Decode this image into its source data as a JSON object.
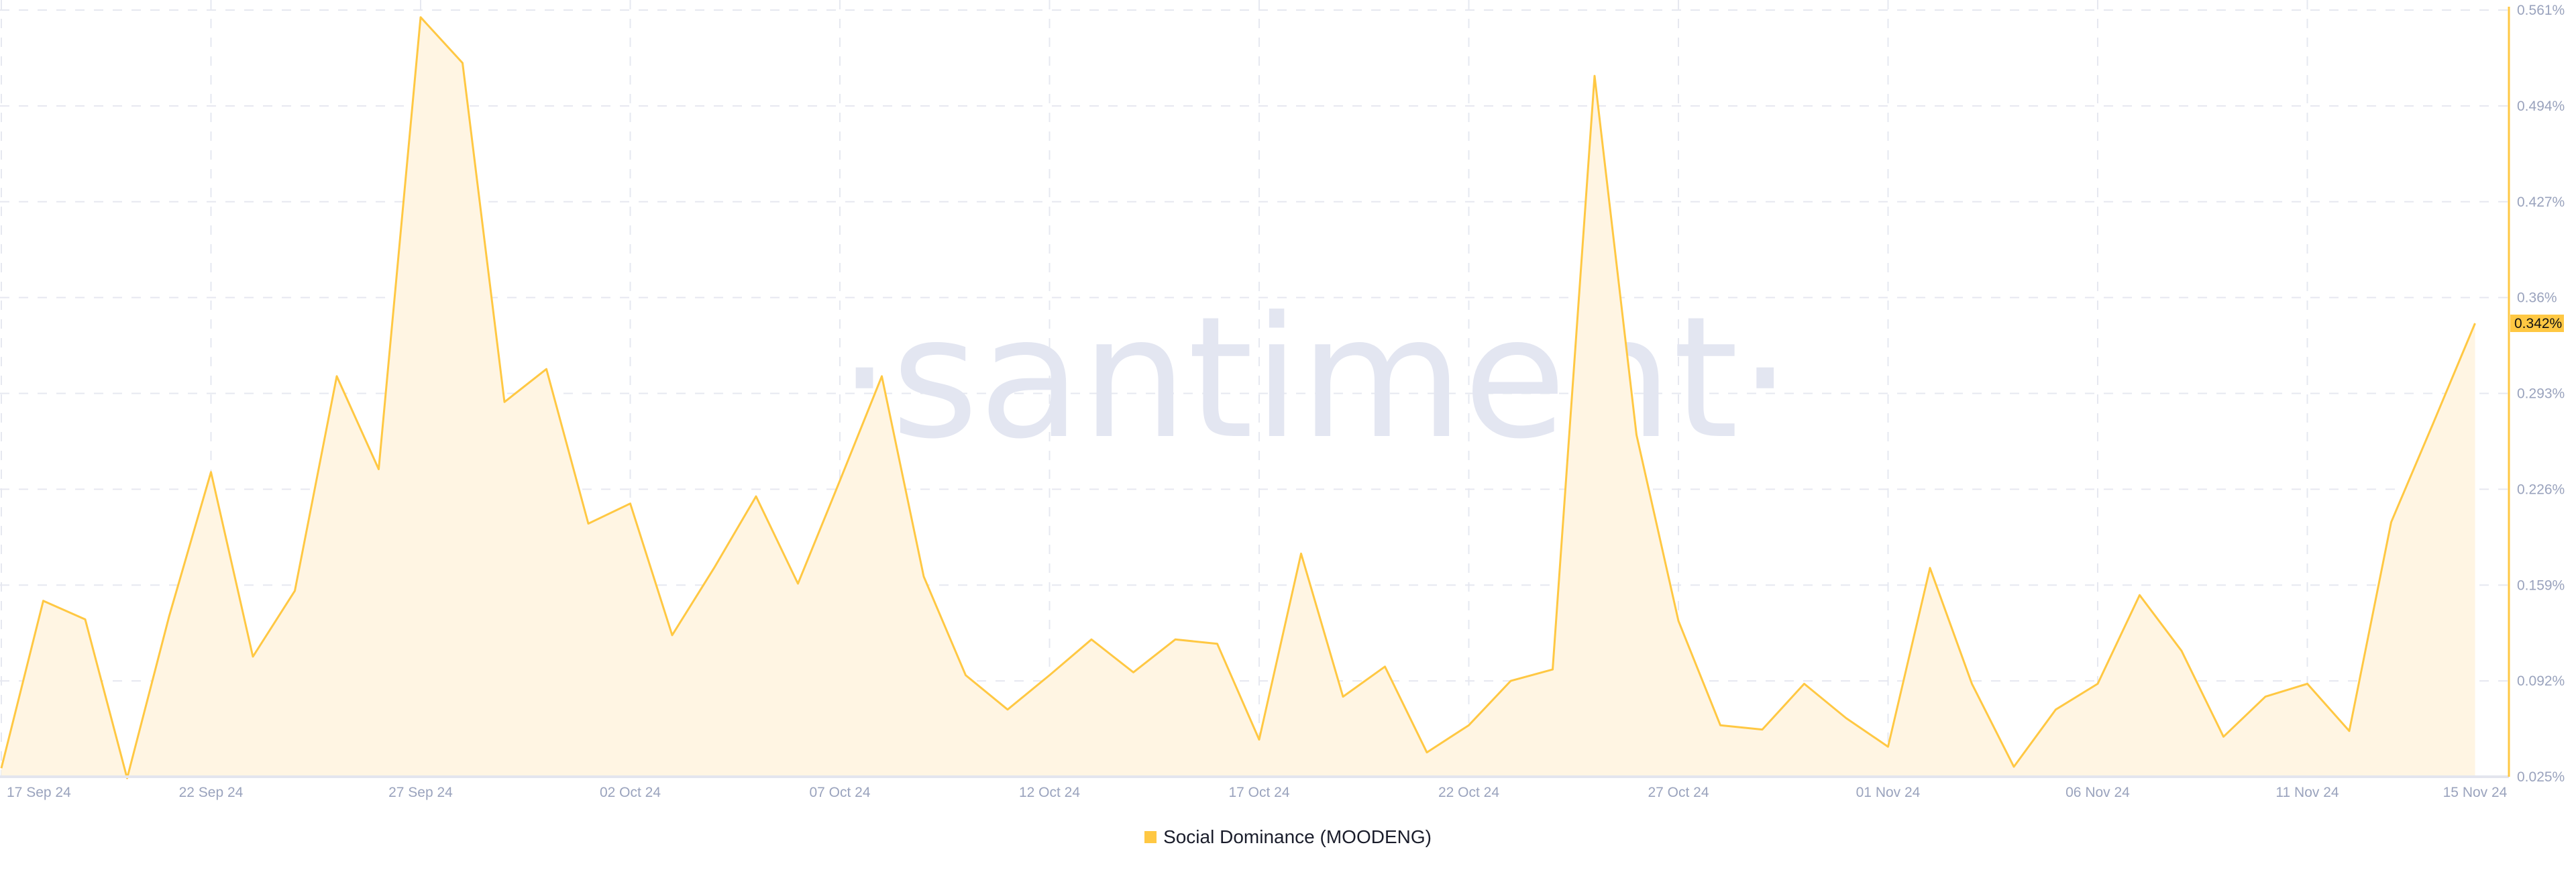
{
  "watermark": "·santiment·",
  "chart_data": {
    "type": "area",
    "title": "",
    "xlabel": "",
    "ylabel": "",
    "series": [
      {
        "name": "Social Dominance (MOODENG)",
        "color": "#ffc843",
        "fill": "#fff5e3",
        "values": [
          0.031,
          0.148,
          0.135,
          0.024,
          0.137,
          0.238,
          0.109,
          0.155,
          0.305,
          0.24,
          0.556,
          0.524,
          0.287,
          0.31,
          0.202,
          0.216,
          0.124,
          0.171,
          0.221,
          0.16,
          0.232,
          0.305,
          0.165,
          0.096,
          0.072,
          0.096,
          0.121,
          0.098,
          0.121,
          0.118,
          0.051,
          0.181,
          0.081,
          0.102,
          0.042,
          0.061,
          0.092,
          0.1,
          0.515,
          0.264,
          0.134,
          0.061,
          0.058,
          0.09,
          0.066,
          0.046,
          0.171,
          0.09,
          0.032,
          0.072,
          0.09,
          0.152,
          0.113,
          0.053,
          0.081,
          0.09,
          0.057,
          0.203,
          0.272,
          0.342
        ]
      }
    ],
    "x_start": "17 Sep 24",
    "x_end": "15 Nov 24",
    "x_interval": "daily",
    "x_ticks": [
      "17 Sep 24",
      "22 Sep 24",
      "27 Sep 24",
      "02 Oct 24",
      "07 Oct 24",
      "12 Oct 24",
      "17 Oct 24",
      "22 Oct 24",
      "27 Oct 24",
      "01 Nov 24",
      "06 Nov 24",
      "11 Nov 24",
      "15 Nov 24"
    ],
    "y_ticks": [
      "0.561%",
      "0.494%",
      "0.427%",
      "0.36%",
      "0.293%",
      "0.226%",
      "0.159%",
      "0.092%",
      "0.025%"
    ],
    "ylim": [
      0.025,
      0.561
    ],
    "y_axis_position": "right",
    "last_value_label": "0.342%",
    "grid": true,
    "legend": "bottom-center"
  }
}
